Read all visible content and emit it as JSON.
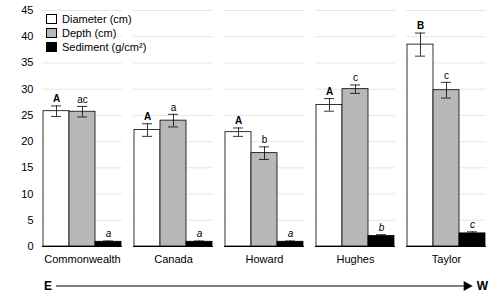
{
  "chart_data": {
    "type": "bar",
    "categories": [
      "Commonwealth",
      "Canada",
      "Howard",
      "Hughes",
      "Taylor"
    ],
    "series": [
      {
        "name": "Diameter (cm)",
        "color": "#ffffff",
        "values": [
          25.8,
          22.2,
          21.8,
          27.0,
          38.5
        ],
        "errors": [
          1.0,
          1.2,
          0.8,
          1.2,
          2.2
        ],
        "labels": [
          "A",
          "A",
          "A",
          "A",
          "B"
        ]
      },
      {
        "name": "Depth (cm)",
        "color": "#b8b8b8",
        "values": [
          25.7,
          24.0,
          17.8,
          30.0,
          29.8
        ],
        "errors": [
          1.0,
          1.2,
          1.2,
          0.8,
          1.5
        ],
        "labels": [
          "ac",
          "a",
          "b",
          "c",
          "c"
        ]
      },
      {
        "name": "Sediment (g/cm²)",
        "color": "#000000",
        "values": [
          0.9,
          0.9,
          0.9,
          2.0,
          2.5
        ],
        "errors": [
          0.15,
          0.15,
          0.15,
          0.25,
          0.3
        ],
        "labels": [
          "a",
          "a",
          "a",
          "b",
          "c"
        ]
      }
    ],
    "ylim": [
      0,
      45
    ],
    "yticks": [
      0,
      5,
      10,
      15,
      20,
      25,
      30,
      35,
      40,
      45
    ],
    "grid": true,
    "legend": "upper left",
    "annotations": [
      "E",
      "W"
    ]
  }
}
